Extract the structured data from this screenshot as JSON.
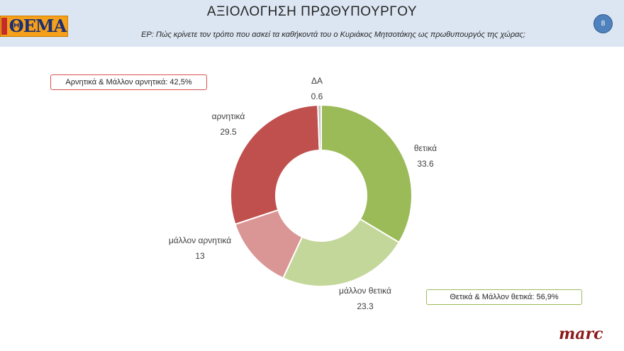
{
  "header": {
    "logo_text": "ΘΕΜΑ",
    "title": "ΑΞΙΟΛΟΓΗΣΗ ΠΡΩΘΥΠΟΥΡΓΟΥ",
    "subtitle": "ΕΡ: Πώς κρίνετε τον τρόπο που ασκεί τα καθήκοντά του ο Κυριάκος Μητσοτάκης ως πρωθυπουργός της χώρας;",
    "page_number": "8"
  },
  "summaries": {
    "negative": "Αρνητικά & Μάλλον αρνητικά: 42,5%",
    "positive": "Θετικά & Μάλλον θετικά: 56,9%"
  },
  "footer": {
    "brand": "marc"
  },
  "chart_data": {
    "type": "pie",
    "variant": "donut",
    "title": "",
    "start": "top, clockwise",
    "slices": [
      {
        "label": "θετικά",
        "value": 33.6,
        "value_label": "33.6",
        "color": "#9bbb59"
      },
      {
        "label": "μάλλον θετικά",
        "value": 23.3,
        "value_label": "23.3",
        "color": "#c4d79b"
      },
      {
        "label": "μάλλον αρνητικά",
        "value": 13,
        "value_label": "13",
        "color": "#da9694"
      },
      {
        "label": "αρνητικά",
        "value": 29.5,
        "value_label": "29.5",
        "color": "#c0504d"
      },
      {
        "label": "ΔΑ",
        "value": 0.6,
        "value_label": "0.6",
        "color": "#bfbfbf"
      }
    ]
  }
}
